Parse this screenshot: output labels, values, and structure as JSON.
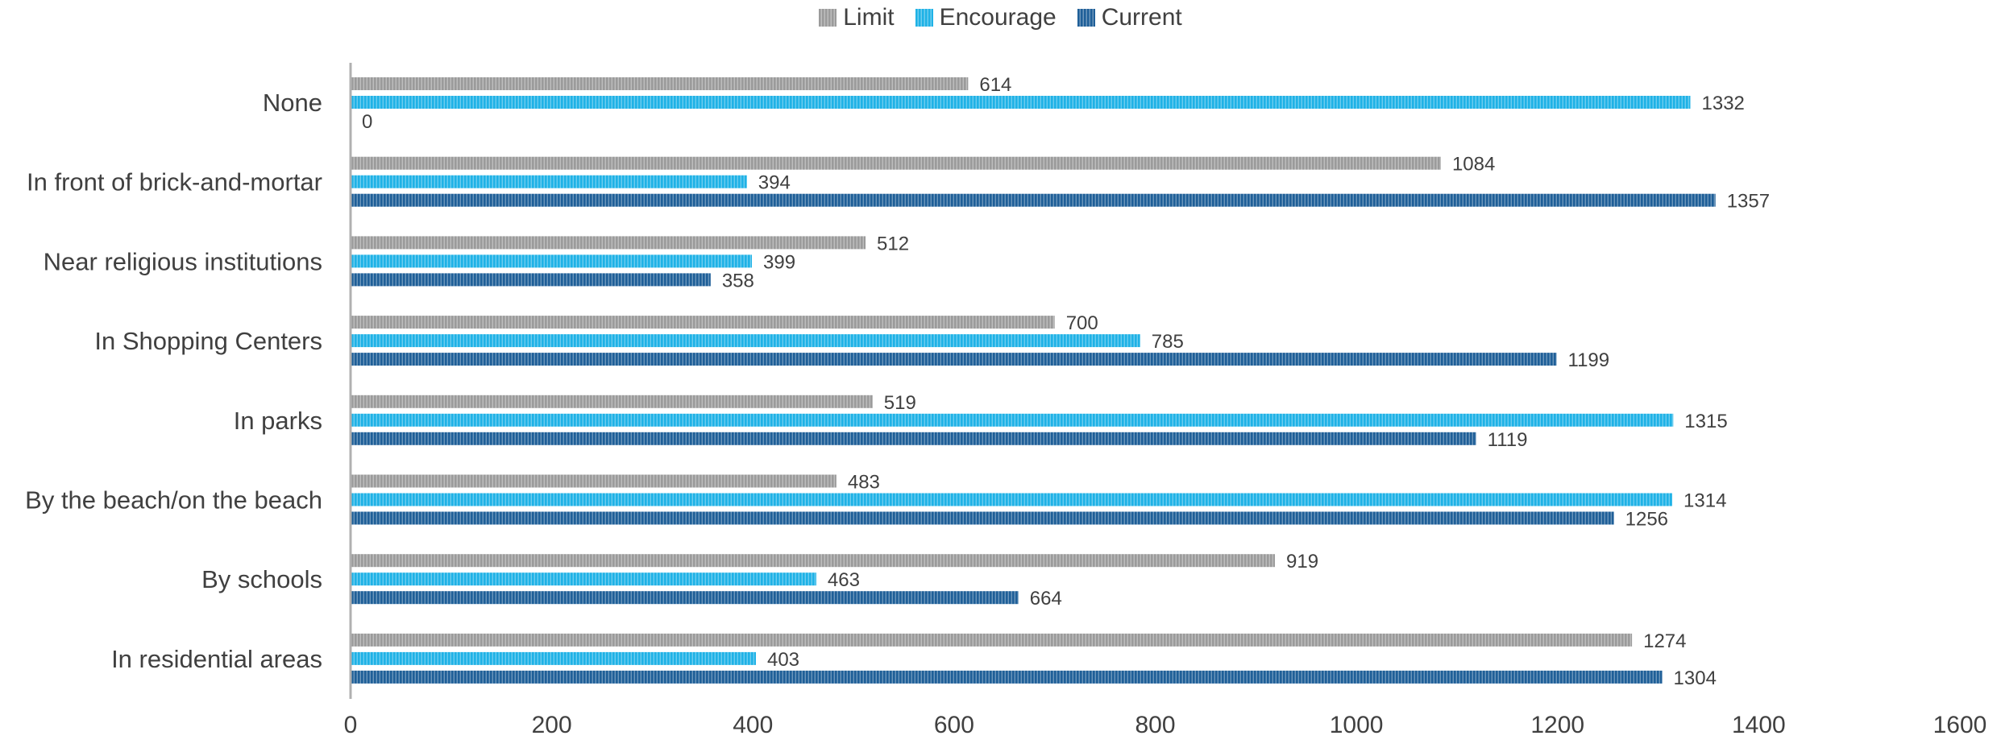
{
  "chart_data": {
    "type": "bar",
    "orientation": "horizontal",
    "categories": [
      "None",
      "In front of brick-and-mortar",
      "Near religious institutions",
      "In Shopping Centers",
      "In parks",
      "By the beach/on the beach",
      "By schools",
      "In residential areas"
    ],
    "series": [
      {
        "name": "Limit",
        "color": "#9b9b9b",
        "values": [
          614,
          1084,
          512,
          700,
          519,
          483,
          919,
          1274
        ]
      },
      {
        "name": "Encourage",
        "color": "#1fb2e6",
        "values": [
          1332,
          394,
          399,
          785,
          1315,
          1314,
          463,
          403
        ]
      },
      {
        "name": "Current",
        "color": "#1f5f98",
        "values": [
          0,
          1357,
          358,
          1199,
          1119,
          1256,
          664,
          1304
        ]
      }
    ],
    "xlim": [
      0,
      1600
    ],
    "xticks": [
      0,
      200,
      400,
      600,
      800,
      1000,
      1200,
      1400,
      1600
    ],
    "data_labels": true,
    "grid": false,
    "legend_position": "top"
  }
}
